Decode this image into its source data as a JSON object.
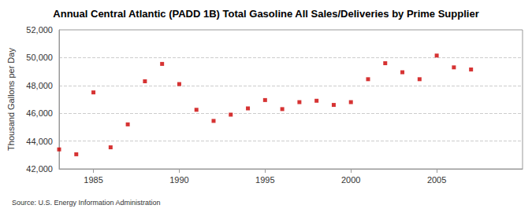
{
  "chart_data": {
    "type": "scatter",
    "title": "Annual Central Atlantic (PADD 1B) Total Gasoline All Sales/Deliveries by Prime Supplier",
    "y_label": "Thousand Gallons per Day",
    "source": "Source: U.S. Energy Information Administration",
    "x": [
      1983,
      1984,
      1985,
      1986,
      1987,
      1988,
      1989,
      1990,
      1991,
      1992,
      1993,
      1994,
      1995,
      1996,
      1997,
      1998,
      1999,
      2000,
      2001,
      2002,
      2003,
      2004,
      2005,
      2006,
      2007
    ],
    "values": [
      43400,
      43050,
      47500,
      43550,
      45200,
      48300,
      49550,
      48100,
      46250,
      45450,
      45900,
      46350,
      46950,
      46300,
      46800,
      46900,
      46600,
      46800,
      48450,
      49600,
      48950,
      48450,
      50150,
      49300,
      49150
    ],
    "color": "#cc0000",
    "marker": "square",
    "xlim": [
      1983,
      2010
    ],
    "xticks": [
      1985,
      1990,
      1995,
      2000,
      2005
    ],
    "ylim": [
      42000,
      52000
    ],
    "yticks": [
      {
        "value": 42000,
        "label": "42,000"
      },
      {
        "value": 44000,
        "label": "44,000"
      },
      {
        "value": 46000,
        "label": "46,000"
      },
      {
        "value": 48000,
        "label": "48,000"
      },
      {
        "value": 50000,
        "label": "50,000"
      },
      {
        "value": 52000,
        "label": "52,000"
      }
    ],
    "grid": true
  }
}
